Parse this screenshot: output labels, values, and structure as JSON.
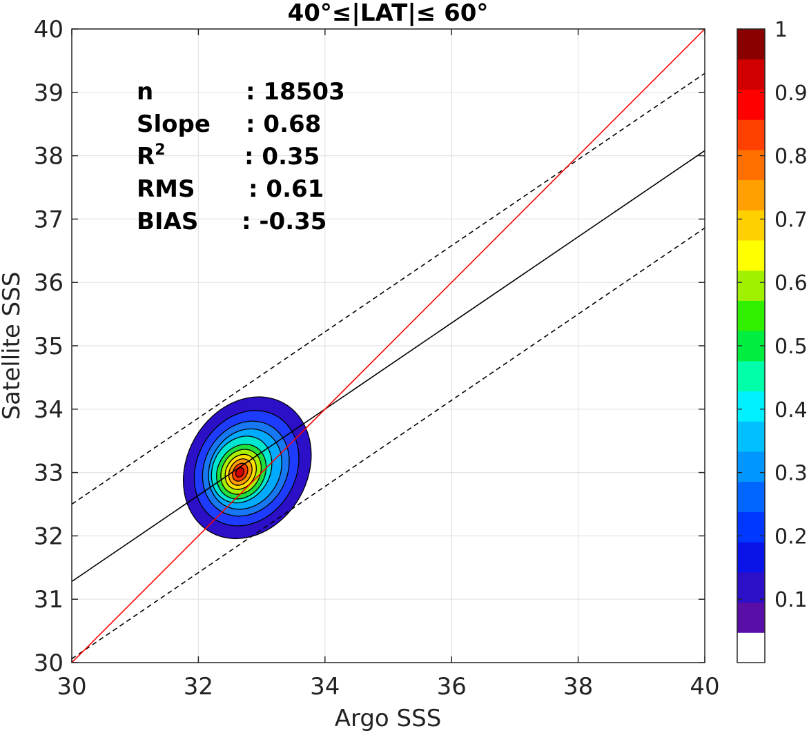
{
  "chart_data": {
    "type": "heatmap",
    "title": "40°≤|LAT|≤ 60°",
    "xlabel": "Argo SSS",
    "ylabel": "Satellite SSS",
    "xlim": [
      30,
      40
    ],
    "ylim": [
      30,
      40
    ],
    "xticks": [
      "30",
      "32",
      "34",
      "36",
      "38",
      "40"
    ],
    "yticks": [
      "30",
      "31",
      "32",
      "33",
      "34",
      "35",
      "36",
      "37",
      "38",
      "39",
      "40"
    ],
    "grid": true,
    "stats": [
      {
        "key": "n",
        "sup": "",
        "value": ": 18503"
      },
      {
        "key": "Slope",
        "sup": "",
        "value": ": 0.68"
      },
      {
        "key": "R",
        "sup": "2",
        "value": ": 0.35"
      },
      {
        "key": "RMS",
        "sup": "",
        "value": ": 0.61"
      },
      {
        "key": "BIAS",
        "sup": "",
        "value": ": -0.35"
      }
    ],
    "lines": {
      "identity": {
        "x": [
          30,
          40
        ],
        "y": [
          30,
          40
        ],
        "color": "#ff0000"
      },
      "regression": {
        "x": [
          30,
          40
        ],
        "y": [
          31.28,
          38.08
        ],
        "color": "#000000"
      },
      "upper_bound": {
        "x": [
          30,
          40
        ],
        "y": [
          32.5,
          39.3
        ],
        "color": "#000000",
        "style": "dashed"
      },
      "lower_bound": {
        "x": [
          30,
          40
        ],
        "y": [
          30.06,
          36.86
        ],
        "color": "#000000",
        "style": "dashed"
      }
    },
    "density_center": {
      "x": 32.65,
      "y": 33.0
    },
    "contour_levels": [
      {
        "level": 0.05,
        "rx": 0.95,
        "ry": 1.17,
        "color": "#2b10c8"
      },
      {
        "level": 0.15,
        "rx": 0.78,
        "ry": 0.95,
        "color": "#1e3cff"
      },
      {
        "level": 0.25,
        "rx": 0.65,
        "ry": 0.78,
        "color": "#1877f2"
      },
      {
        "level": 0.3,
        "rx": 0.55,
        "ry": 0.66,
        "color": "#00aaff"
      },
      {
        "level": 0.4,
        "rx": 0.45,
        "ry": 0.55,
        "color": "#00e6d0"
      },
      {
        "level": 0.5,
        "rx": 0.37,
        "ry": 0.45,
        "color": "#20e040"
      },
      {
        "level": 0.6,
        "rx": 0.3,
        "ry": 0.37,
        "color": "#a8f000"
      },
      {
        "level": 0.7,
        "rx": 0.23,
        "ry": 0.29,
        "color": "#ffe000"
      },
      {
        "level": 0.75,
        "rx": 0.17,
        "ry": 0.22,
        "color": "#ff9a00"
      },
      {
        "level": 0.85,
        "rx": 0.11,
        "ry": 0.15,
        "color": "#ff3a00"
      },
      {
        "level": 0.95,
        "rx": 0.06,
        "ry": 0.08,
        "color": "#cc0000"
      }
    ],
    "colorbar": {
      "ticks": [
        "0.1",
        "0.2",
        "0.3",
        "0.4",
        "0.5",
        "0.6",
        "0.7",
        "0.8",
        "0.9",
        "1"
      ],
      "tick_values": [
        0.1,
        0.2,
        0.3,
        0.4,
        0.5,
        0.6,
        0.7,
        0.8,
        0.9,
        1.0
      ],
      "colors": [
        "#ffffff",
        "#5a0ea8",
        "#2b10c8",
        "#0a14e8",
        "#0038ff",
        "#0066ff",
        "#0096ff",
        "#00c0ff",
        "#00f0ff",
        "#00ffa8",
        "#00ee40",
        "#30f000",
        "#a0f000",
        "#ffff00",
        "#ffd000",
        "#ffa000",
        "#ff7000",
        "#ff4000",
        "#ff0000",
        "#d00000",
        "#8a0000"
      ]
    }
  }
}
